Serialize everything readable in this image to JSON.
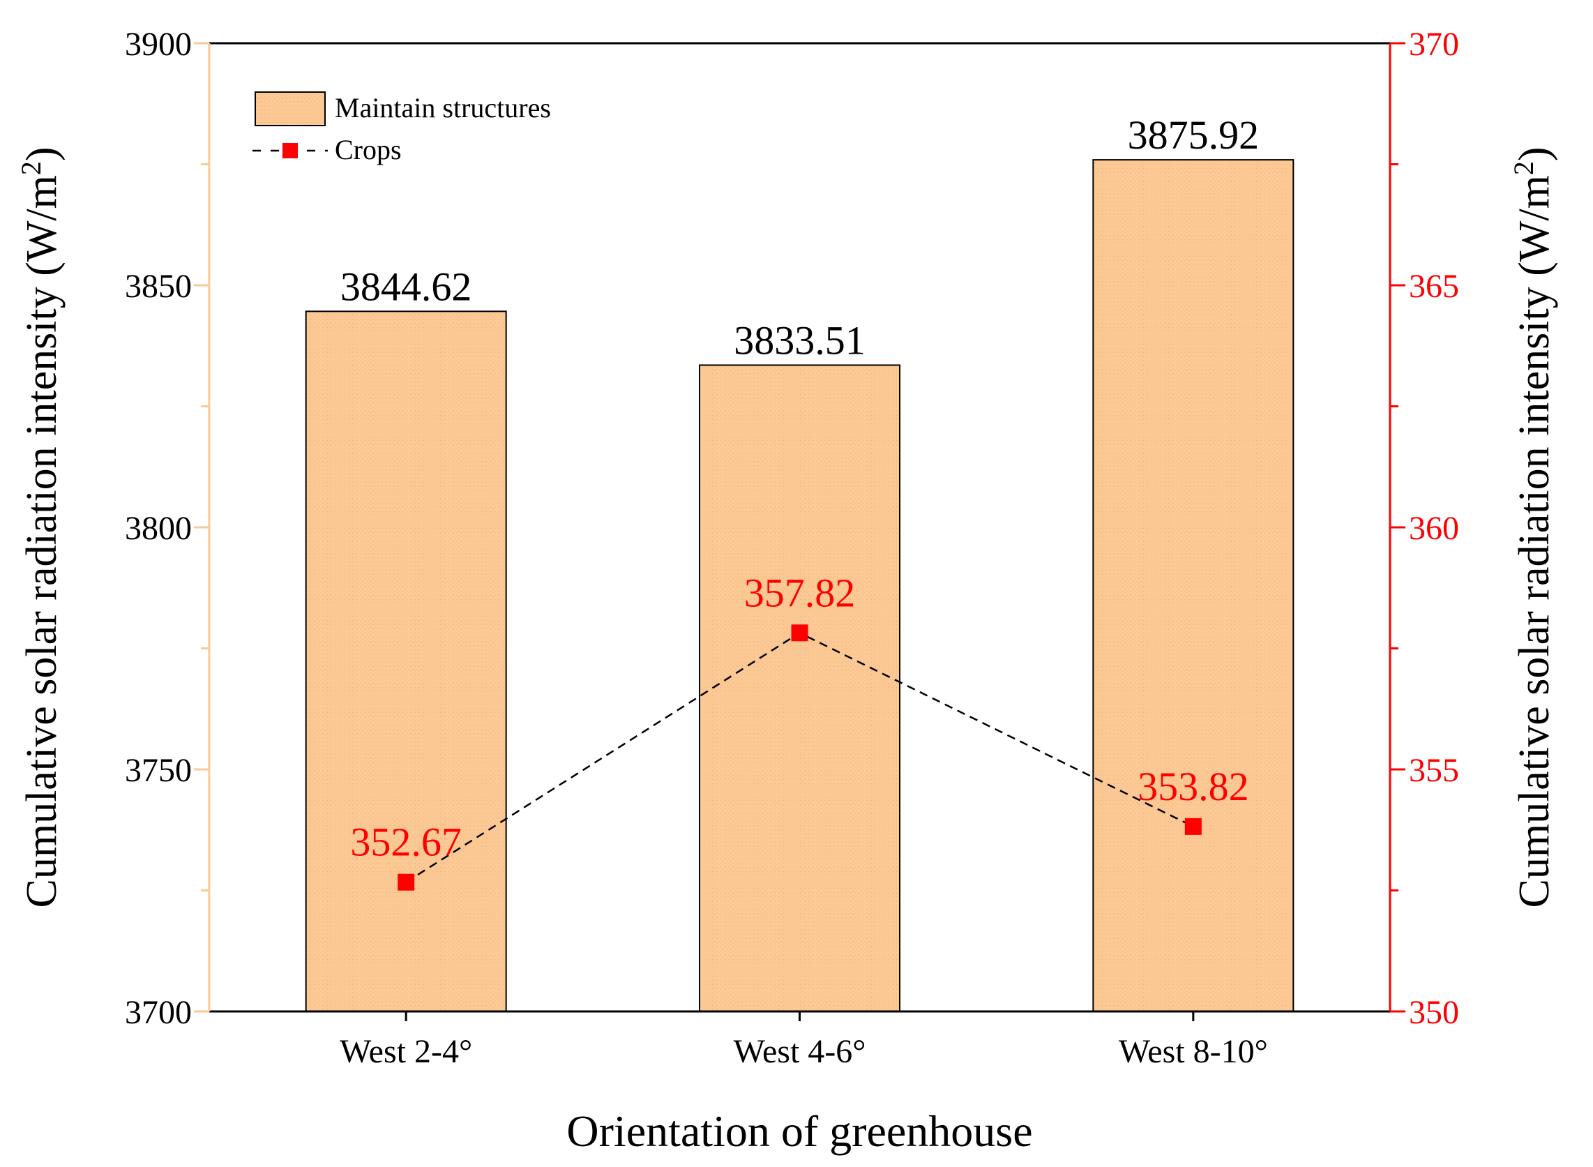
{
  "chart_data": {
    "type": "bar+line",
    "title": "",
    "xlabel": "Orientation of greenhouse",
    "ylabel_left": "Cumulative solar radiation intensity (W/m",
    "ylabel_right": "Cumulative solar radiation intensity (W/m",
    "ylabel_superscript": "2",
    "ylabel_close": ")",
    "categories": [
      "West 2-4°",
      "West 4-6°",
      "West 8-10°"
    ],
    "bar_series": {
      "name": "Maintain structures",
      "values": [
        3844.62,
        3833.51,
        3875.92
      ],
      "labels": [
        "3844.62",
        "3833.51",
        "3875.92"
      ],
      "axis": "left"
    },
    "line_series": {
      "name": "Crops",
      "values": [
        352.67,
        357.82,
        353.82
      ],
      "labels": [
        "352.67",
        "357.82",
        "353.82"
      ],
      "axis": "right"
    },
    "ylim_left": [
      3700,
      3900
    ],
    "yticks_left": [
      3700,
      3750,
      3800,
      3850,
      3900
    ],
    "ylim_right": [
      350,
      370
    ],
    "yticks_right": [
      350,
      355,
      360,
      365,
      370
    ],
    "legend": {
      "placement": "top-left",
      "items": [
        "Maintain structures",
        "Crops"
      ]
    },
    "grid": false
  },
  "colors": {
    "bar_fill": "#fcc995",
    "bar_stroke": "#000000",
    "line_color": "#000000",
    "marker_color": "#ff0000",
    "right_axis_color": "#ff0000",
    "left_axis_color": "#f8c99a",
    "axis_text": "#000000",
    "red_label": "#ff0000"
  }
}
